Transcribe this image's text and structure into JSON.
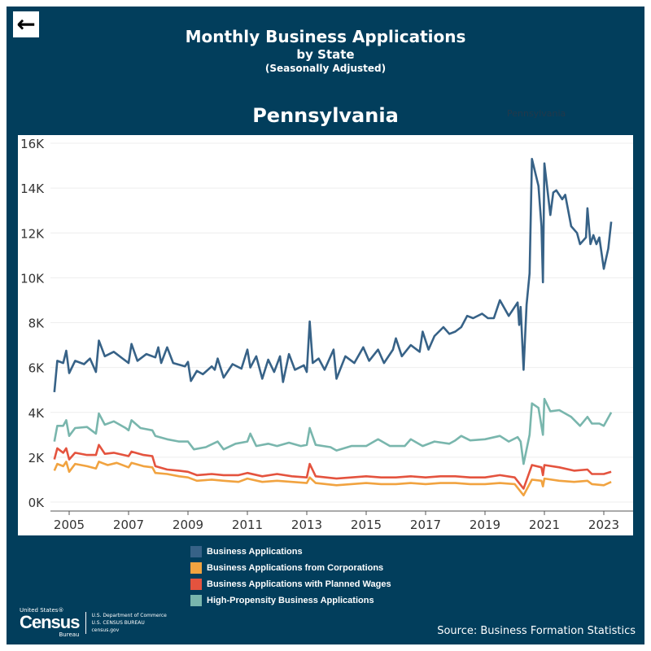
{
  "header": {
    "back_icon": "arrow-left-icon",
    "title": "Monthly Business Applications",
    "subtitle": "by State",
    "note": "(Seasonally Adjusted)",
    "state": "Pennsylvania",
    "state_dropdown": "Pennsylvania"
  },
  "footer": {
    "logo_top": "United States®",
    "logo_main": "Census",
    "logo_sub": "Bureau",
    "dept": "U.S. Department of Commerce",
    "bureau": "U.S. CENSUS BUREAU",
    "site": "census.gov",
    "source": "Source: Business Formation Statistics"
  },
  "chart_data": {
    "type": "line",
    "title": "Pennsylvania",
    "xlabel": "",
    "ylabel": "",
    "xlim": [
      2004.5,
      2024
    ],
    "ylim": [
      0,
      16000
    ],
    "yticks": [
      {
        "v": 0,
        "label": "0K"
      },
      {
        "v": 2000,
        "label": "2K"
      },
      {
        "v": 4000,
        "label": "4K"
      },
      {
        "v": 6000,
        "label": "6K"
      },
      {
        "v": 8000,
        "label": "8K"
      },
      {
        "v": 10000,
        "label": "10K"
      },
      {
        "v": 12000,
        "label": "12K"
      },
      {
        "v": 14000,
        "label": "14K"
      },
      {
        "v": 16000,
        "label": "16K"
      }
    ],
    "xticks": [
      {
        "v": 2005,
        "label": "2005"
      },
      {
        "v": 2007,
        "label": "2007"
      },
      {
        "v": 2009,
        "label": "2009"
      },
      {
        "v": 2011,
        "label": "2011"
      },
      {
        "v": 2013,
        "label": "2013"
      },
      {
        "v": 2015,
        "label": "2015"
      },
      {
        "v": 2017,
        "label": "2017"
      },
      {
        "v": 2019,
        "label": "2019"
      },
      {
        "v": 2021,
        "label": "2021"
      },
      {
        "v": 2023,
        "label": "2023"
      }
    ],
    "series": [
      {
        "name": "Business Applications",
        "color": "#376287",
        "points": [
          [
            2004.5,
            4900
          ],
          [
            2004.6,
            6300
          ],
          [
            2004.8,
            6200
          ],
          [
            2004.9,
            6750
          ],
          [
            2005.0,
            5750
          ],
          [
            2005.2,
            6300
          ],
          [
            2005.5,
            6150
          ],
          [
            2005.7,
            6400
          ],
          [
            2005.9,
            5800
          ],
          [
            2006.0,
            7200
          ],
          [
            2006.2,
            6500
          ],
          [
            2006.5,
            6700
          ],
          [
            2006.8,
            6400
          ],
          [
            2007.0,
            6200
          ],
          [
            2007.1,
            7050
          ],
          [
            2007.3,
            6300
          ],
          [
            2007.6,
            6600
          ],
          [
            2007.9,
            6450
          ],
          [
            2008.0,
            6900
          ],
          [
            2008.1,
            6200
          ],
          [
            2008.3,
            6900
          ],
          [
            2008.5,
            6200
          ],
          [
            2008.9,
            6050
          ],
          [
            2009.0,
            6250
          ],
          [
            2009.1,
            5400
          ],
          [
            2009.3,
            5850
          ],
          [
            2009.5,
            5700
          ],
          [
            2009.8,
            6050
          ],
          [
            2009.9,
            5900
          ],
          [
            2010.0,
            6400
          ],
          [
            2010.2,
            5550
          ],
          [
            2010.5,
            6150
          ],
          [
            2010.8,
            5950
          ],
          [
            2011.0,
            6800
          ],
          [
            2011.1,
            6000
          ],
          [
            2011.3,
            6500
          ],
          [
            2011.5,
            5500
          ],
          [
            2011.7,
            6350
          ],
          [
            2011.9,
            5800
          ],
          [
            2012.1,
            6500
          ],
          [
            2012.2,
            5350
          ],
          [
            2012.4,
            6600
          ],
          [
            2012.6,
            5900
          ],
          [
            2012.9,
            6100
          ],
          [
            2013.0,
            5800
          ],
          [
            2013.1,
            8050
          ],
          [
            2013.2,
            6200
          ],
          [
            2013.4,
            6400
          ],
          [
            2013.6,
            5900
          ],
          [
            2013.9,
            6800
          ],
          [
            2014.0,
            5500
          ],
          [
            2014.3,
            6500
          ],
          [
            2014.6,
            6200
          ],
          [
            2014.9,
            6900
          ],
          [
            2015.1,
            6300
          ],
          [
            2015.4,
            6800
          ],
          [
            2015.6,
            6200
          ],
          [
            2015.9,
            6800
          ],
          [
            2016.0,
            7300
          ],
          [
            2016.2,
            6500
          ],
          [
            2016.5,
            7000
          ],
          [
            2016.8,
            6700
          ],
          [
            2016.9,
            7600
          ],
          [
            2017.1,
            6800
          ],
          [
            2017.3,
            7400
          ],
          [
            2017.6,
            7800
          ],
          [
            2017.8,
            7500
          ],
          [
            2018.0,
            7600
          ],
          [
            2018.2,
            7800
          ],
          [
            2018.4,
            8300
          ],
          [
            2018.6,
            8200
          ],
          [
            2018.9,
            8400
          ],
          [
            2019.1,
            8200
          ],
          [
            2019.3,
            8200
          ],
          [
            2019.5,
            9000
          ],
          [
            2019.8,
            8300
          ],
          [
            2020.0,
            8700
          ],
          [
            2020.1,
            8900
          ],
          [
            2020.15,
            7900
          ],
          [
            2020.2,
            8700
          ],
          [
            2020.3,
            5900
          ],
          [
            2020.4,
            8800
          ],
          [
            2020.5,
            10200
          ],
          [
            2020.58,
            15300
          ],
          [
            2020.8,
            14100
          ],
          [
            2020.9,
            12300
          ],
          [
            2020.95,
            9800
          ],
          [
            2021.0,
            15100
          ],
          [
            2021.2,
            12800
          ],
          [
            2021.3,
            13800
          ],
          [
            2021.4,
            13900
          ],
          [
            2021.6,
            13500
          ],
          [
            2021.7,
            13700
          ],
          [
            2021.9,
            12300
          ],
          [
            2022.1,
            12000
          ],
          [
            2022.2,
            11500
          ],
          [
            2022.4,
            11800
          ],
          [
            2022.45,
            13100
          ],
          [
            2022.55,
            11500
          ],
          [
            2022.65,
            11900
          ],
          [
            2022.75,
            11500
          ],
          [
            2022.85,
            11800
          ],
          [
            2023.0,
            10400
          ],
          [
            2023.15,
            11300
          ],
          [
            2023.25,
            12500
          ]
        ]
      },
      {
        "name": "Business Applications from Corporations",
        "color": "#f1a340",
        "points": [
          [
            2004.5,
            1400
          ],
          [
            2004.6,
            1700
          ],
          [
            2004.8,
            1600
          ],
          [
            2004.9,
            1800
          ],
          [
            2005.0,
            1350
          ],
          [
            2005.2,
            1700
          ],
          [
            2005.6,
            1600
          ],
          [
            2005.9,
            1500
          ],
          [
            2006.0,
            1800
          ],
          [
            2006.3,
            1650
          ],
          [
            2006.6,
            1750
          ],
          [
            2007.0,
            1550
          ],
          [
            2007.1,
            1750
          ],
          [
            2007.5,
            1600
          ],
          [
            2007.8,
            1550
          ],
          [
            2007.9,
            1300
          ],
          [
            2008.3,
            1250
          ],
          [
            2008.7,
            1150
          ],
          [
            2009.0,
            1100
          ],
          [
            2009.3,
            950
          ],
          [
            2009.8,
            1000
          ],
          [
            2010.2,
            950
          ],
          [
            2010.7,
            900
          ],
          [
            2011.0,
            1050
          ],
          [
            2011.5,
            900
          ],
          [
            2012.0,
            950
          ],
          [
            2012.5,
            900
          ],
          [
            2013.0,
            850
          ],
          [
            2013.1,
            1100
          ],
          [
            2013.3,
            850
          ],
          [
            2014.0,
            750
          ],
          [
            2014.5,
            800
          ],
          [
            2015.0,
            850
          ],
          [
            2015.5,
            800
          ],
          [
            2016.0,
            800
          ],
          [
            2016.5,
            850
          ],
          [
            2017.0,
            800
          ],
          [
            2017.5,
            850
          ],
          [
            2018.0,
            850
          ],
          [
            2018.5,
            800
          ],
          [
            2019.0,
            800
          ],
          [
            2019.5,
            850
          ],
          [
            2020.0,
            800
          ],
          [
            2020.3,
            300
          ],
          [
            2020.58,
            1000
          ],
          [
            2020.9,
            950
          ],
          [
            2020.95,
            700
          ],
          [
            2021.0,
            1050
          ],
          [
            2021.5,
            950
          ],
          [
            2022.0,
            900
          ],
          [
            2022.45,
            950
          ],
          [
            2022.6,
            800
          ],
          [
            2023.0,
            750
          ],
          [
            2023.25,
            900
          ]
        ]
      },
      {
        "name": "Business Applications with Planned Wages",
        "color": "#e4533e",
        "points": [
          [
            2004.5,
            1900
          ],
          [
            2004.6,
            2400
          ],
          [
            2004.8,
            2200
          ],
          [
            2004.9,
            2400
          ],
          [
            2005.0,
            1900
          ],
          [
            2005.2,
            2200
          ],
          [
            2005.6,
            2100
          ],
          [
            2005.9,
            2100
          ],
          [
            2006.0,
            2550
          ],
          [
            2006.2,
            2150
          ],
          [
            2006.5,
            2200
          ],
          [
            2007.0,
            2050
          ],
          [
            2007.1,
            2250
          ],
          [
            2007.5,
            2100
          ],
          [
            2007.8,
            2050
          ],
          [
            2007.9,
            1600
          ],
          [
            2008.3,
            1450
          ],
          [
            2008.7,
            1400
          ],
          [
            2009.0,
            1350
          ],
          [
            2009.3,
            1200
          ],
          [
            2009.8,
            1250
          ],
          [
            2010.2,
            1200
          ],
          [
            2010.7,
            1200
          ],
          [
            2011.0,
            1300
          ],
          [
            2011.5,
            1150
          ],
          [
            2012.0,
            1250
          ],
          [
            2012.5,
            1150
          ],
          [
            2013.0,
            1100
          ],
          [
            2013.1,
            1700
          ],
          [
            2013.3,
            1150
          ],
          [
            2014.0,
            1050
          ],
          [
            2014.5,
            1100
          ],
          [
            2015.0,
            1150
          ],
          [
            2015.5,
            1100
          ],
          [
            2016.0,
            1100
          ],
          [
            2016.5,
            1150
          ],
          [
            2017.0,
            1100
          ],
          [
            2017.5,
            1150
          ],
          [
            2018.0,
            1150
          ],
          [
            2018.5,
            1100
          ],
          [
            2019.0,
            1100
          ],
          [
            2019.5,
            1200
          ],
          [
            2020.0,
            1100
          ],
          [
            2020.3,
            600
          ],
          [
            2020.58,
            1650
          ],
          [
            2020.9,
            1550
          ],
          [
            2020.95,
            1200
          ],
          [
            2021.0,
            1650
          ],
          [
            2021.5,
            1550
          ],
          [
            2022.0,
            1400
          ],
          [
            2022.45,
            1450
          ],
          [
            2022.6,
            1250
          ],
          [
            2023.0,
            1250
          ],
          [
            2023.25,
            1350
          ]
        ]
      },
      {
        "name": "High-Propensity Business Applications",
        "color": "#79b6ad",
        "points": [
          [
            2004.5,
            2700
          ],
          [
            2004.6,
            3400
          ],
          [
            2004.8,
            3400
          ],
          [
            2004.9,
            3650
          ],
          [
            2005.0,
            2950
          ],
          [
            2005.2,
            3300
          ],
          [
            2005.6,
            3350
          ],
          [
            2005.9,
            3050
          ],
          [
            2006.0,
            3950
          ],
          [
            2006.2,
            3450
          ],
          [
            2006.5,
            3600
          ],
          [
            2006.9,
            3300
          ],
          [
            2007.0,
            3200
          ],
          [
            2007.1,
            3650
          ],
          [
            2007.4,
            3300
          ],
          [
            2007.8,
            3200
          ],
          [
            2007.9,
            2950
          ],
          [
            2008.3,
            2800
          ],
          [
            2008.7,
            2700
          ],
          [
            2009.0,
            2700
          ],
          [
            2009.2,
            2350
          ],
          [
            2009.6,
            2450
          ],
          [
            2010.0,
            2700
          ],
          [
            2010.2,
            2350
          ],
          [
            2010.6,
            2600
          ],
          [
            2011.0,
            2700
          ],
          [
            2011.1,
            3050
          ],
          [
            2011.3,
            2500
          ],
          [
            2011.7,
            2600
          ],
          [
            2012.0,
            2500
          ],
          [
            2012.4,
            2650
          ],
          [
            2012.8,
            2500
          ],
          [
            2013.0,
            2550
          ],
          [
            2013.1,
            3300
          ],
          [
            2013.3,
            2550
          ],
          [
            2013.8,
            2450
          ],
          [
            2014.0,
            2300
          ],
          [
            2014.5,
            2500
          ],
          [
            2015.0,
            2500
          ],
          [
            2015.4,
            2800
          ],
          [
            2015.8,
            2500
          ],
          [
            2016.3,
            2500
          ],
          [
            2016.5,
            2800
          ],
          [
            2016.9,
            2500
          ],
          [
            2017.3,
            2700
          ],
          [
            2017.8,
            2600
          ],
          [
            2018.0,
            2750
          ],
          [
            2018.2,
            2950
          ],
          [
            2018.5,
            2750
          ],
          [
            2019.0,
            2800
          ],
          [
            2019.5,
            2950
          ],
          [
            2019.8,
            2700
          ],
          [
            2020.1,
            2900
          ],
          [
            2020.2,
            2700
          ],
          [
            2020.3,
            1700
          ],
          [
            2020.5,
            3000
          ],
          [
            2020.58,
            4400
          ],
          [
            2020.8,
            4200
          ],
          [
            2020.95,
            3000
          ],
          [
            2021.0,
            4600
          ],
          [
            2021.2,
            4050
          ],
          [
            2021.5,
            4100
          ],
          [
            2021.9,
            3800
          ],
          [
            2022.2,
            3400
          ],
          [
            2022.45,
            3800
          ],
          [
            2022.6,
            3500
          ],
          [
            2022.85,
            3500
          ],
          [
            2023.0,
            3400
          ],
          [
            2023.25,
            4000
          ]
        ]
      }
    ]
  }
}
